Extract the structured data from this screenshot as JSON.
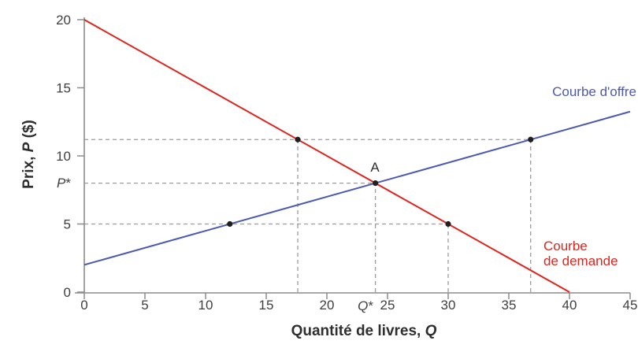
{
  "chart_data": {
    "type": "line",
    "title": "",
    "xlabel": "Quantité de livres, Q",
    "ylabel": "Prix, P ($)",
    "xlabel_parts": {
      "pre": "Quantité de livres, ",
      "var": "Q",
      "post": ""
    },
    "ylabel_parts": {
      "pre": "Prix, ",
      "var": "P",
      "post": " ($)"
    },
    "xlim": [
      0,
      45
    ],
    "ylim": [
      0,
      20
    ],
    "x_ticks": [
      0,
      5,
      10,
      15,
      20,
      25,
      30,
      35,
      40,
      45
    ],
    "y_ticks": [
      0,
      5,
      10,
      15,
      20
    ],
    "grid": false,
    "legend_position": "inline-right",
    "series": [
      {
        "name": "Courbe d'offre",
        "role": "supply",
        "color": "#4c59b2",
        "x": [
          0,
          45
        ],
        "y": [
          2,
          13.25
        ]
      },
      {
        "name": "Courbe de demande",
        "role": "demand",
        "color": "#e0241c",
        "x": [
          0,
          40
        ],
        "y": [
          20,
          0
        ]
      }
    ],
    "equilibrium": {
      "label": "A",
      "Q": 24,
      "P": 8,
      "q_axis_label": "Q*",
      "p_axis_label": "P*"
    },
    "markers": [
      {
        "x": 17.6,
        "y": 11.2,
        "on": "demand"
      },
      {
        "x": 36.8,
        "y": 11.2,
        "on": "supply"
      },
      {
        "x": 12,
        "y": 5,
        "on": "supply"
      },
      {
        "x": 30,
        "y": 5,
        "on": "demand"
      },
      {
        "x": 24,
        "y": 8,
        "on": "equilibrium"
      }
    ],
    "dashed_guides": {
      "horizontal": [
        {
          "p": 11.2,
          "from_q": 0,
          "to_q": 36.8
        },
        {
          "p": 8,
          "from_q": 0,
          "to_q": 24
        },
        {
          "p": 5,
          "from_q": 0,
          "to_q": 30
        }
      ],
      "vertical": [
        {
          "q": 17.6,
          "from_p": 0,
          "to_p": 11.2
        },
        {
          "q": 24,
          "from_p": 0,
          "to_p": 8
        },
        {
          "q": 30,
          "from_p": 0,
          "to_p": 5
        },
        {
          "q": 36.8,
          "from_p": 0,
          "to_p": 11.2
        }
      ]
    }
  },
  "labels": {
    "supply_curve": "Courbe d'offre",
    "demand_curve_line1": "Courbe",
    "demand_curve_line2": "de demande",
    "point_a": "A",
    "p_star": {
      "var": "P",
      "star": "*"
    },
    "q_star": {
      "var": "Q",
      "star": "*"
    }
  },
  "colors": {
    "supply": "#4c59b2",
    "demand": "#e0241c",
    "axis": "#8c8c8c",
    "dashed": "#9c9c9c",
    "marker": "#1f1f1f",
    "tick_text": "#3f3f3f",
    "title_text": "#2f2f2f"
  }
}
